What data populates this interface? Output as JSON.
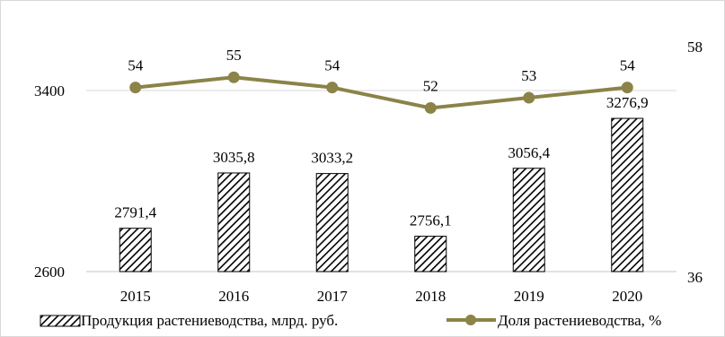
{
  "chart_data": {
    "type": "bar+line",
    "categories": [
      "2015",
      "2016",
      "2017",
      "2018",
      "2019",
      "2020"
    ],
    "series": [
      {
        "name": "Продукция растениеводства, млрд. руб.",
        "type": "bar",
        "axis": "left",
        "values": [
          2791.4,
          3035.8,
          3033.2,
          2756.1,
          3056.4,
          3276.9
        ],
        "labels": [
          "2791,4",
          "3035,8",
          "3033,2",
          "2756,1",
          "3056,4",
          "3276,9"
        ]
      },
      {
        "name": "Доля растениеводства, %",
        "type": "line",
        "axis": "right",
        "values": [
          54,
          55,
          54,
          52,
          53,
          54
        ],
        "labels": [
          "54",
          "55",
          "54",
          "52",
          "53",
          "54"
        ]
      }
    ],
    "y_left": {
      "ticks": [
        "2600",
        "3400"
      ],
      "range": [
        2600,
        3400
      ]
    },
    "y_right": {
      "ticks": [
        "36",
        "58"
      ],
      "range": [
        36,
        58
      ]
    },
    "legend_position": "bottom",
    "colors": {
      "bar_fill": "#ffffff",
      "bar_hatch": "#000000",
      "line": "#8b8347",
      "axis": "#d9d9d9"
    }
  }
}
